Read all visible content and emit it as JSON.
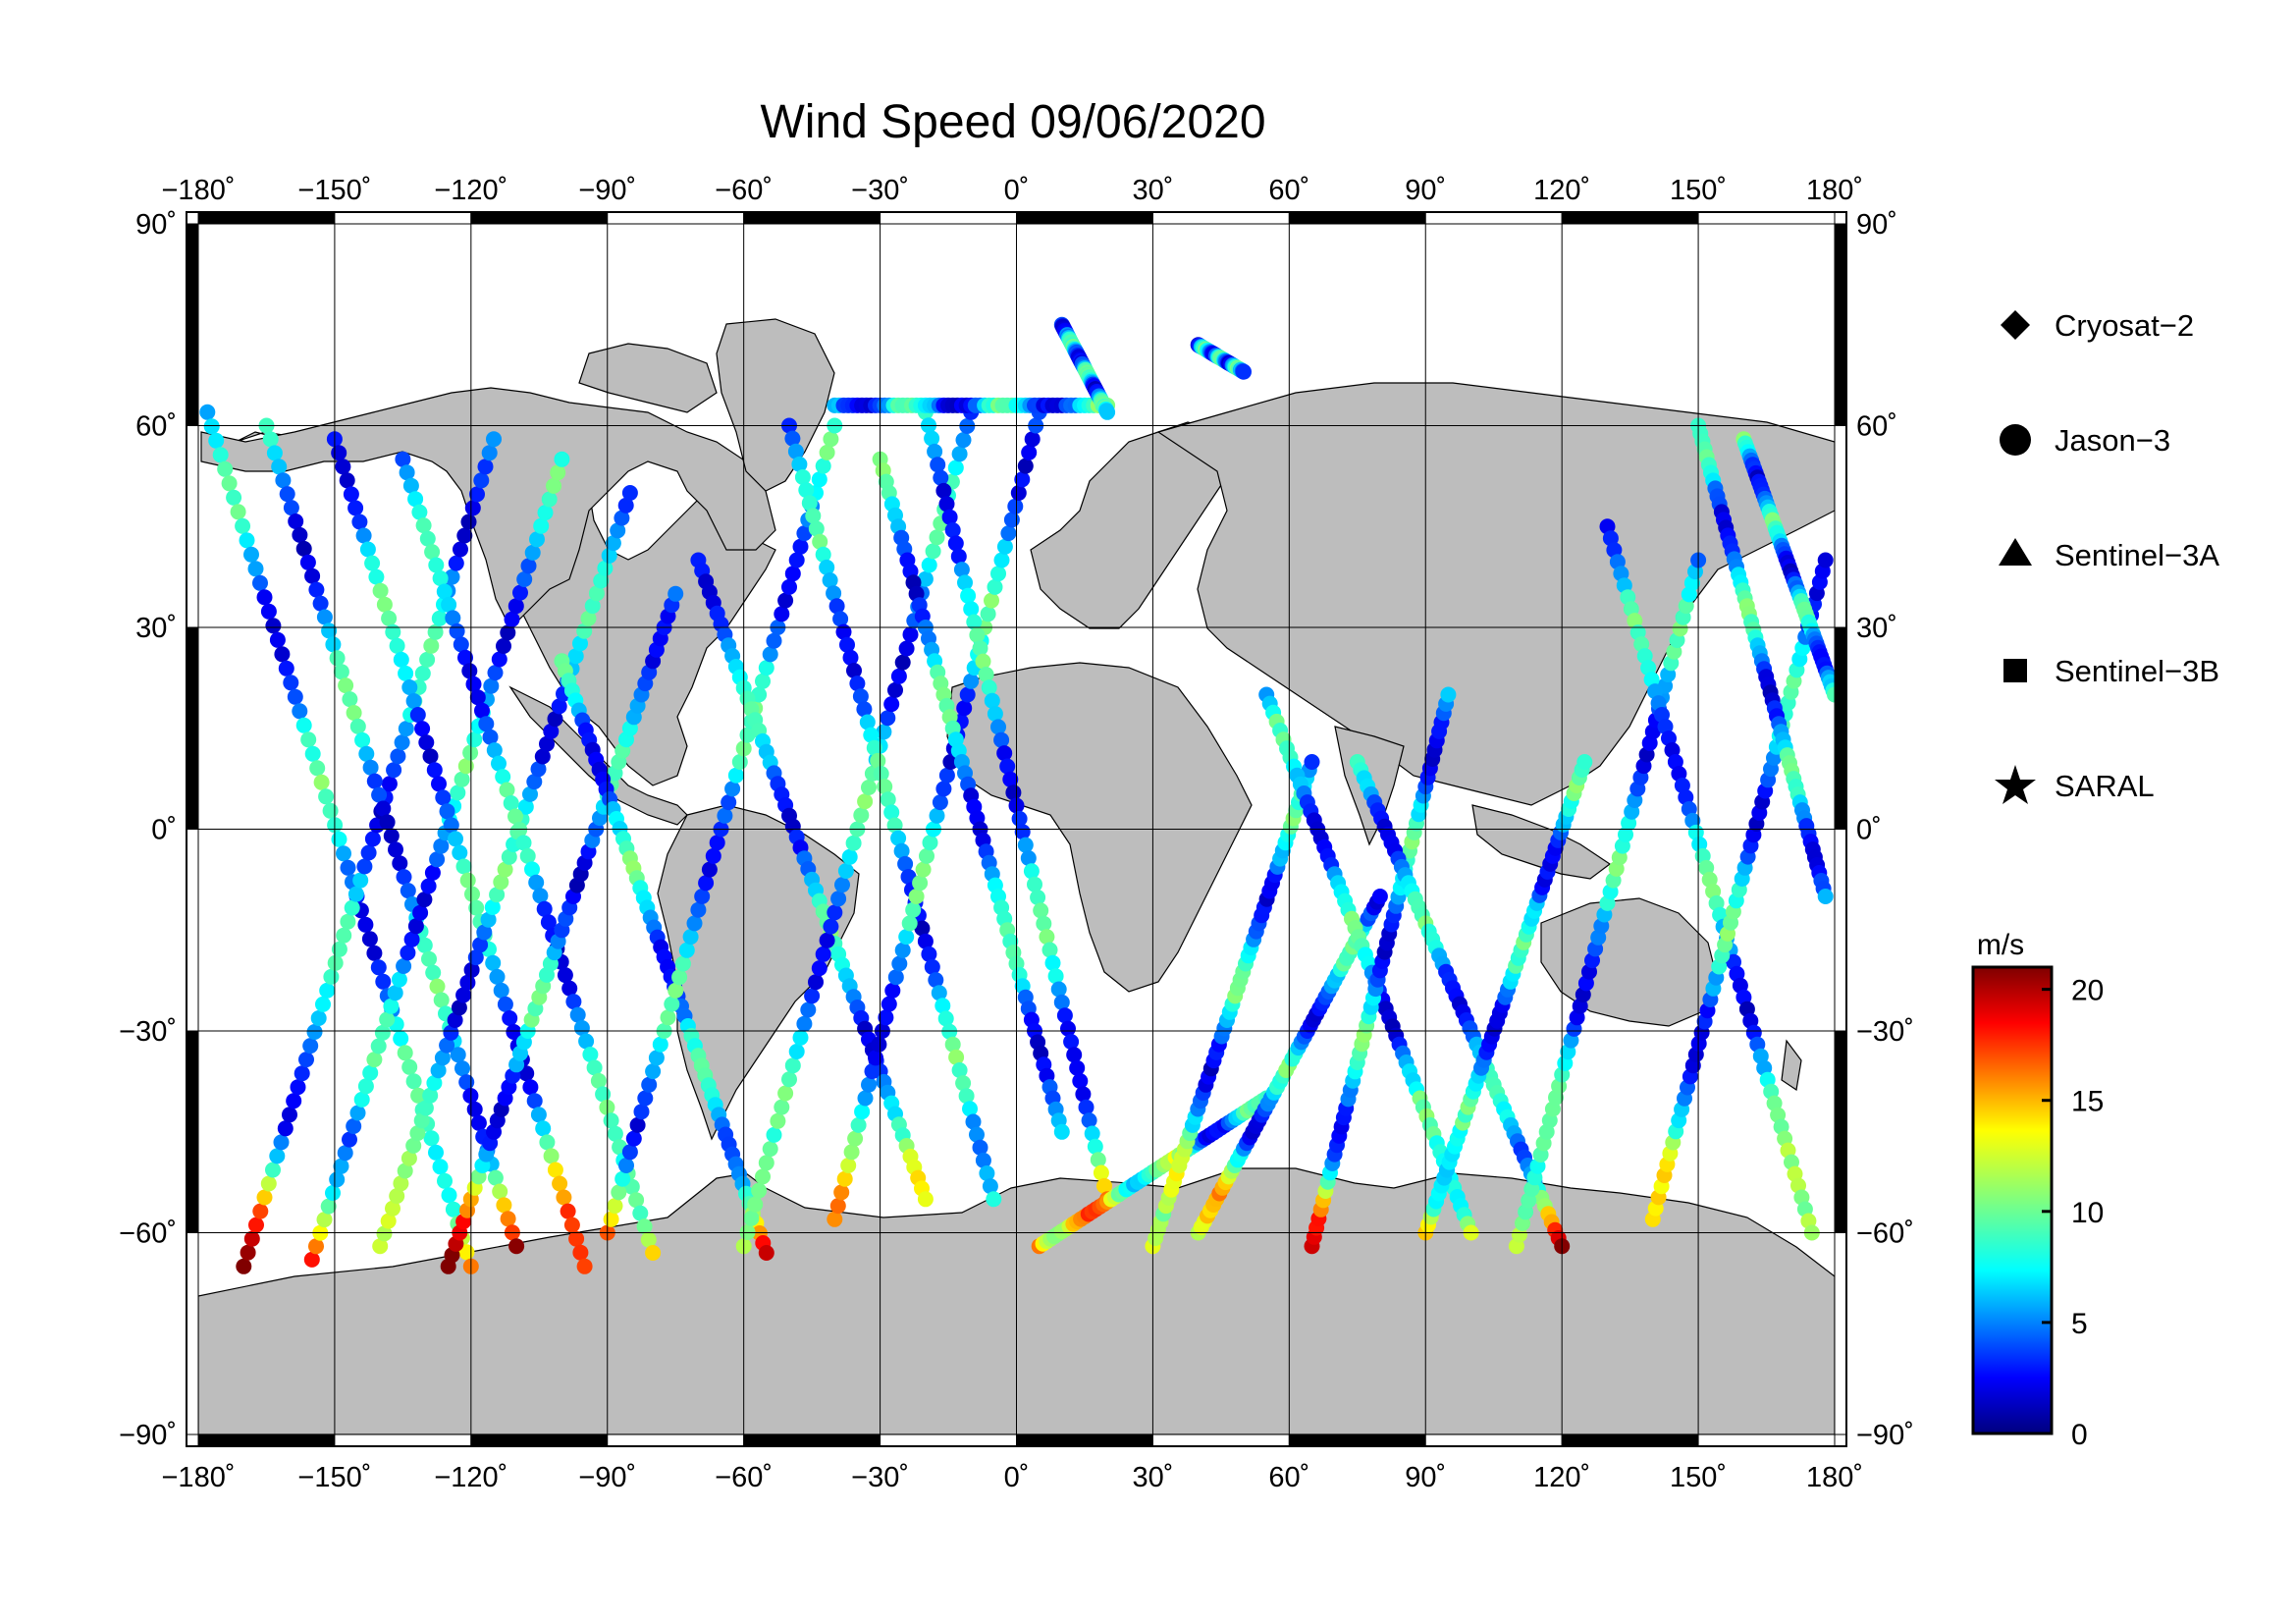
{
  "title": "Wind Speed 09/06/2020",
  "axes": {
    "lon_ticks": [
      -180,
      -150,
      -120,
      -90,
      -60,
      -30,
      0,
      30,
      60,
      90,
      120,
      150,
      180
    ],
    "lat_ticks": [
      90,
      60,
      30,
      0,
      -30,
      -60,
      -90
    ],
    "lon_range": [
      -180,
      180
    ],
    "lat_range": [
      -90,
      90
    ],
    "grid": true,
    "degree_symbol": "˚"
  },
  "legend": {
    "placement": "right",
    "items": [
      {
        "label": "Cryosat−2",
        "symbol": "diamond"
      },
      {
        "label": "Jason−3",
        "symbol": "circle"
      },
      {
        "label": "Sentinel−3A",
        "symbol": "triangle"
      },
      {
        "label": "Sentinel−3B",
        "symbol": "square"
      },
      {
        "label": "SARAL",
        "symbol": "star"
      }
    ]
  },
  "colorbar": {
    "unit": "m/s",
    "min": 0,
    "max": 21,
    "ticks": [
      0,
      5,
      10,
      15,
      20
    ],
    "colormap": "jet"
  },
  "colors": {
    "land": "#bdbdbd",
    "ocean": "#ffffff",
    "grid": "#000000"
  },
  "chart_data": {
    "type": "scatter",
    "title": "Wind Speed 09/06/2020",
    "xlabel": "",
    "ylabel": "",
    "xlim": [
      -180,
      180
    ],
    "ylim": [
      -90,
      90
    ],
    "value_unit": "m/s",
    "tracks": [
      {
        "lon0": -178,
        "lat0": 62,
        "lon1": -120,
        "lat1": -65
      },
      {
        "lon0": -170,
        "lat0": -65,
        "lon1": -115,
        "lat1": 58
      },
      {
        "lon0": -165,
        "lat0": 60,
        "lon1": -110,
        "lat1": -62
      },
      {
        "lon0": -155,
        "lat0": -64,
        "lon1": -100,
        "lat1": 55
      },
      {
        "lon0": -150,
        "lat0": 58,
        "lon1": -95,
        "lat1": -65
      },
      {
        "lon0": -140,
        "lat0": -62,
        "lon1": -85,
        "lat1": 50
      },
      {
        "lon0": -135,
        "lat0": 55,
        "lon1": -80,
        "lat1": -63
      },
      {
        "lon0": -125,
        "lat0": -65,
        "lon1": -75,
        "lat1": 35
      },
      {
        "lon0": -100,
        "lat0": 25,
        "lon1": -55,
        "lat1": -63
      },
      {
        "lon0": -90,
        "lat0": -60,
        "lon1": -40,
        "lat1": 60
      },
      {
        "lon0": -70,
        "lat0": 40,
        "lon1": -20,
        "lat1": -55
      },
      {
        "lon0": -60,
        "lat0": -62,
        "lon1": -10,
        "lat1": 62
      },
      {
        "lon0": -50,
        "lat0": 60,
        "lon1": -5,
        "lat1": -55
      },
      {
        "lon0": -40,
        "lat0": -58,
        "lon1": 5,
        "lat1": 62
      },
      {
        "lon0": -30,
        "lat0": 55,
        "lon1": 10,
        "lat1": -45
      },
      {
        "lon0": -20,
        "lat0": 62,
        "lon1": 20,
        "lat1": -55
      },
      {
        "lon0": 5,
        "lat0": -62,
        "lon1": 55,
        "lat1": -40
      },
      {
        "lon0": 30,
        "lat0": -62,
        "lon1": 65,
        "lat1": 10
      },
      {
        "lon0": 40,
        "lat0": -60,
        "lon1": 80,
        "lat1": -10
      },
      {
        "lon0": 55,
        "lat0": 20,
        "lon1": 100,
        "lat1": -60
      },
      {
        "lon0": 65,
        "lat0": -62,
        "lon1": 95,
        "lat1": 20
      },
      {
        "lon0": 75,
        "lat0": 10,
        "lon1": 120,
        "lat1": -62
      },
      {
        "lon0": 90,
        "lat0": -60,
        "lon1": 125,
        "lat1": 10
      },
      {
        "lon0": 110,
        "lat0": -62,
        "lon1": 150,
        "lat1": 40
      },
      {
        "lon0": 130,
        "lat0": 45,
        "lon1": 175,
        "lat1": -60
      },
      {
        "lon0": 140,
        "lat0": -58,
        "lon1": 178,
        "lat1": 40
      },
      {
        "lon0": 150,
        "lat0": 60,
        "lon1": 178,
        "lat1": -10
      },
      {
        "lon0": 160,
        "lat0": 58,
        "lon1": 180,
        "lat1": 20
      },
      {
        "lon0": -40,
        "lat0": 63,
        "lon1": 20,
        "lat1": 63
      },
      {
        "lon0": 10,
        "lat0": 75,
        "lon1": 20,
        "lat1": 62
      },
      {
        "lon0": 40,
        "lat0": 72,
        "lon1": 50,
        "lat1": 68
      }
    ]
  }
}
